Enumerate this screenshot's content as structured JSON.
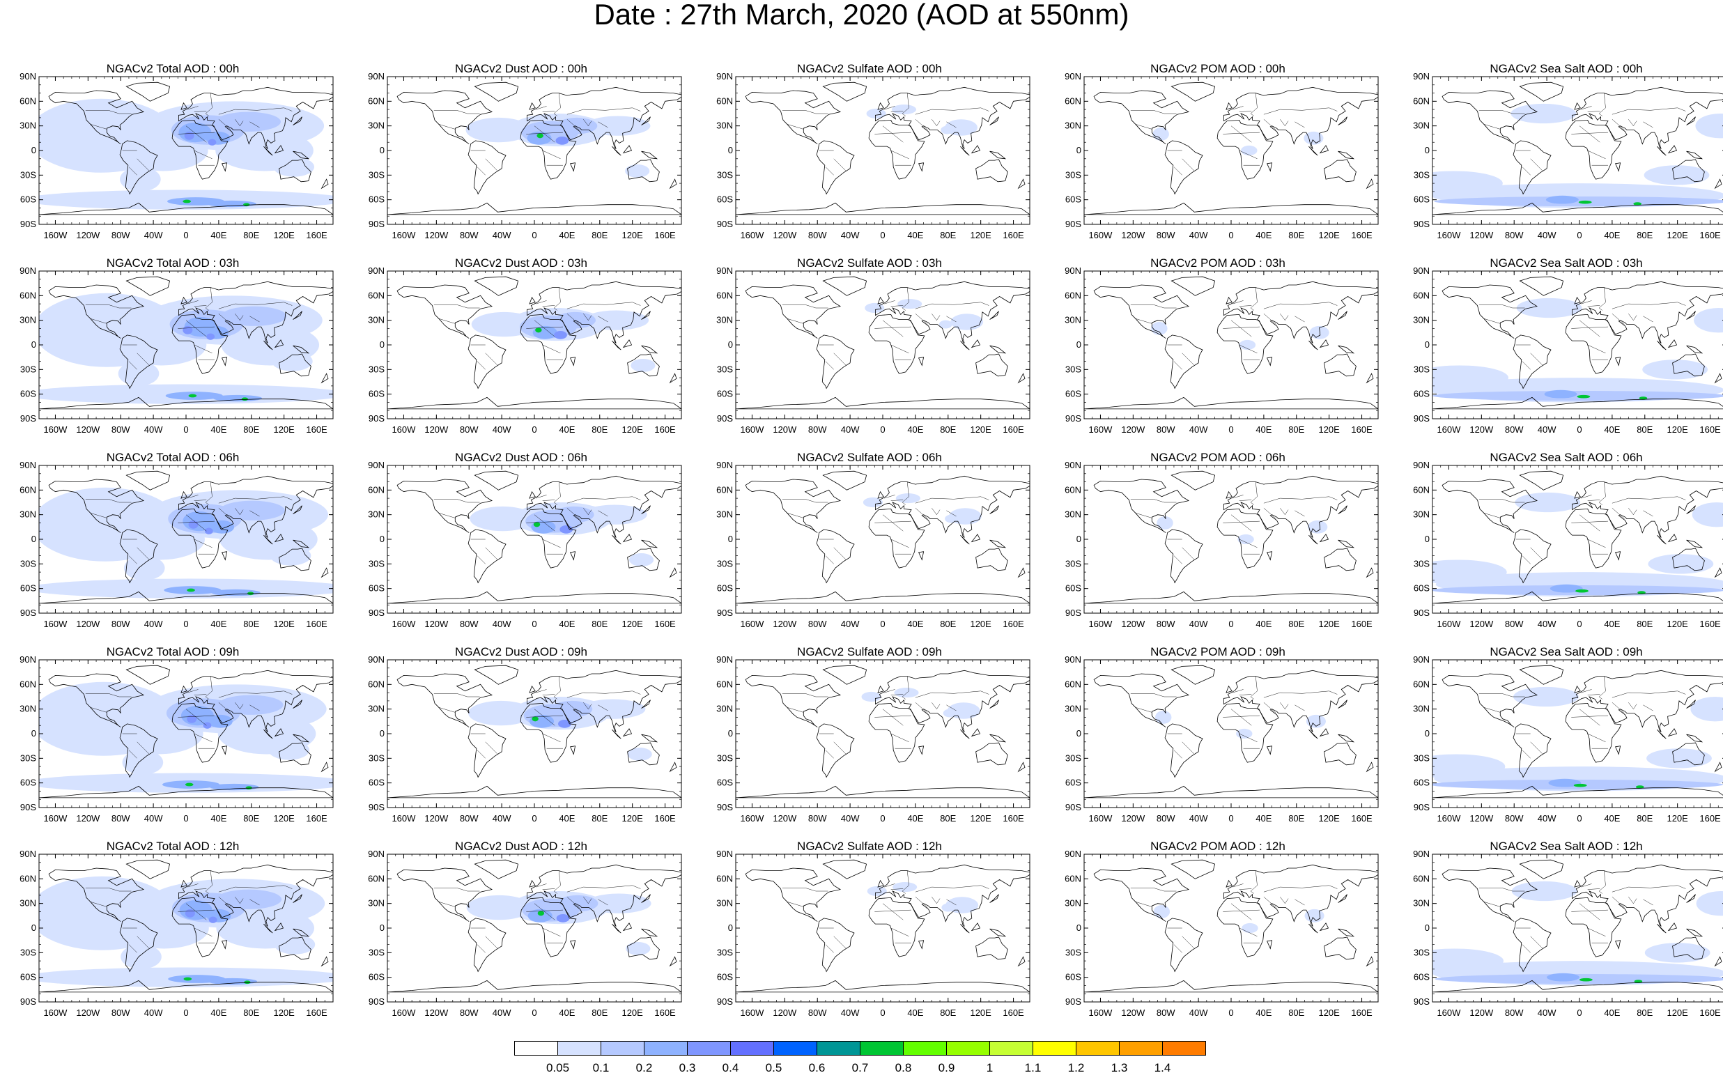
{
  "title": "Date : 27th March, 2020 (AOD at 550nm)",
  "lat_ticks": [
    "90N",
    "60N",
    "30N",
    "0",
    "30S",
    "60S",
    "90S"
  ],
  "lon_ticks": [
    "160W",
    "120W",
    "80W",
    "40W",
    "0",
    "40E",
    "80E",
    "120E",
    "160E"
  ],
  "panels": [
    [
      "NGACv2 Total AOD : 00h",
      "NGACv2 Dust AOD : 00h",
      "NGACv2 Sulfate AOD : 00h",
      "NGACv2 POM AOD : 00h",
      "NGACv2 Sea Salt AOD : 00h"
    ],
    [
      "NGACv2 Total AOD : 03h",
      "NGACv2 Dust AOD : 03h",
      "NGACv2 Sulfate AOD : 03h",
      "NGACv2 POM AOD : 03h",
      "NGACv2 Sea Salt AOD : 03h"
    ],
    [
      "NGACv2 Total AOD : 06h",
      "NGACv2 Dust AOD : 06h",
      "NGACv2 Sulfate AOD : 06h",
      "NGACv2 POM AOD : 06h",
      "NGACv2 Sea Salt AOD : 06h"
    ],
    [
      "NGACv2 Total AOD : 09h",
      "NGACv2 Dust AOD : 09h",
      "NGACv2 Sulfate AOD : 09h",
      "NGACv2 POM AOD : 09h",
      "NGACv2 Sea Salt  AOD : 09h"
    ],
    [
      "NGACv2 Total AOD : 12h",
      "NGACv2 Dust AOD : 12h",
      "NGACv2 Sulfate AOD : 12h",
      "NGACv2 POM  AOD : 12h",
      "NGACv2 Sea Salt AOD : 12h"
    ]
  ],
  "colorbar": {
    "labels": [
      "0.05",
      "0.1",
      "0.2",
      "0.3",
      "0.4",
      "0.5",
      "0.6",
      "0.7",
      "0.8",
      "0.9",
      "1",
      "1.1",
      "1.2",
      "1.3",
      "1.4"
    ],
    "colors": [
      "#ffffff",
      "#d6e2ff",
      "#b5c9ff",
      "#8eb2ff",
      "#7f96ff",
      "#6370ff",
      "#0063ff",
      "#009696",
      "#00c633",
      "#63ff00",
      "#96ff00",
      "#c6ff33",
      "#ffff00",
      "#ffc600",
      "#ffa000",
      "#ff7c00",
      "#ff1900"
    ]
  }
}
